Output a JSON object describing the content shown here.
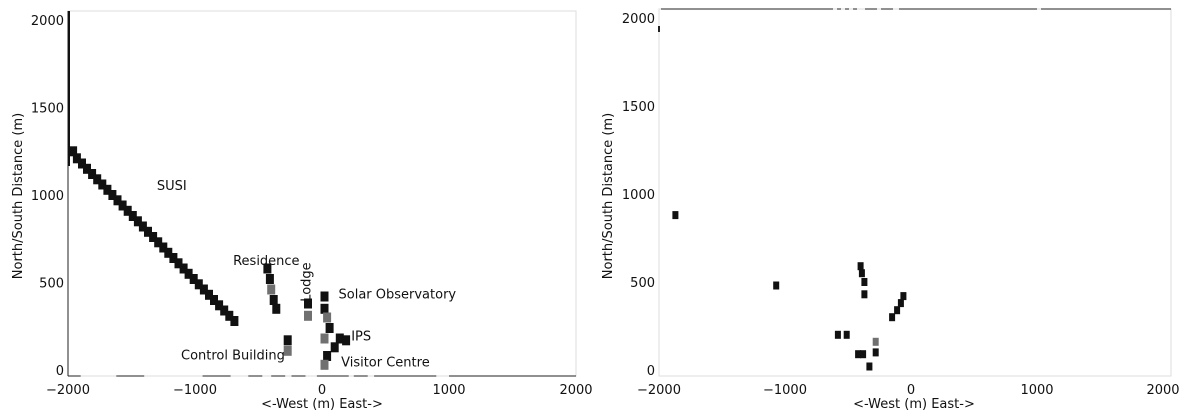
{
  "chart_data": [
    {
      "type": "heatmap",
      "panel": "left",
      "title": "",
      "xlabel": "<-West (m) East->",
      "ylabel": "North/South Distance (m)",
      "xlim": [
        -2000,
        2000
      ],
      "ylim": [
        0,
        2050
      ],
      "xticks": [
        -2000,
        -1000,
        0,
        1000,
        2000
      ],
      "yticks": [
        0,
        500,
        1000,
        1500,
        2000
      ],
      "grid": false,
      "annotations": [
        {
          "text": "SUSI",
          "x": -1300,
          "y": 1030
        },
        {
          "text": "Residence",
          "x": -700,
          "y": 600
        },
        {
          "text": "Lodge",
          "x": -90,
          "y": 390,
          "rotation": -90
        },
        {
          "text": "Solar Observatory",
          "x": 130,
          "y": 410
        },
        {
          "text": "IPS",
          "x": 230,
          "y": 170
        },
        {
          "text": "Control Building",
          "x": -1110,
          "y": 60
        },
        {
          "text": "Visitor Centre",
          "x": 150,
          "y": 20
        }
      ],
      "cells": [
        {
          "x": -1960,
          "y": 1250,
          "v": 1
        },
        {
          "x": -1930,
          "y": 1210,
          "v": 1
        },
        {
          "x": -1890,
          "y": 1180,
          "v": 1
        },
        {
          "x": -1850,
          "y": 1150,
          "v": 1
        },
        {
          "x": -1810,
          "y": 1120,
          "v": 1
        },
        {
          "x": -1770,
          "y": 1090,
          "v": 1
        },
        {
          "x": -1730,
          "y": 1060,
          "v": 1
        },
        {
          "x": -1690,
          "y": 1030,
          "v": 1
        },
        {
          "x": -1650,
          "y": 1000,
          "v": 1
        },
        {
          "x": -1610,
          "y": 970,
          "v": 1
        },
        {
          "x": -1570,
          "y": 940,
          "v": 1
        },
        {
          "x": -1530,
          "y": 910,
          "v": 1
        },
        {
          "x": -1490,
          "y": 880,
          "v": 1
        },
        {
          "x": -1450,
          "y": 850,
          "v": 1
        },
        {
          "x": -1410,
          "y": 820,
          "v": 1
        },
        {
          "x": -1370,
          "y": 790,
          "v": 1
        },
        {
          "x": -1330,
          "y": 760,
          "v": 1
        },
        {
          "x": -1290,
          "y": 730,
          "v": 1
        },
        {
          "x": -1250,
          "y": 700,
          "v": 1
        },
        {
          "x": -1210,
          "y": 670,
          "v": 1
        },
        {
          "x": -1170,
          "y": 640,
          "v": 1
        },
        {
          "x": -1130,
          "y": 610,
          "v": 1
        },
        {
          "x": -1090,
          "y": 580,
          "v": 1
        },
        {
          "x": -1050,
          "y": 550,
          "v": 1
        },
        {
          "x": -1010,
          "y": 520,
          "v": 1
        },
        {
          "x": -970,
          "y": 490,
          "v": 1
        },
        {
          "x": -930,
          "y": 460,
          "v": 1
        },
        {
          "x": -890,
          "y": 430,
          "v": 1
        },
        {
          "x": -850,
          "y": 400,
          "v": 1
        },
        {
          "x": -810,
          "y": 370,
          "v": 1
        },
        {
          "x": -770,
          "y": 340,
          "v": 1
        },
        {
          "x": -730,
          "y": 310,
          "v": 1
        },
        {
          "x": -690,
          "y": 280,
          "v": 1
        },
        {
          "x": -430,
          "y": 580,
          "v": 1
        },
        {
          "x": -410,
          "y": 520,
          "v": 1
        },
        {
          "x": -400,
          "y": 460,
          "v": 0.6
        },
        {
          "x": -380,
          "y": 400,
          "v": 1
        },
        {
          "x": -360,
          "y": 350,
          "v": 1
        },
        {
          "x": -270,
          "y": 170,
          "v": 1
        },
        {
          "x": -270,
          "y": 110,
          "v": 0.6
        },
        {
          "x": -110,
          "y": 380,
          "v": 1
        },
        {
          "x": -110,
          "y": 310,
          "v": 0.6
        },
        {
          "x": 20,
          "y": 420,
          "v": 1
        },
        {
          "x": 20,
          "y": 350,
          "v": 1
        },
        {
          "x": 40,
          "y": 300,
          "v": 0.6
        },
        {
          "x": 60,
          "y": 240,
          "v": 1
        },
        {
          "x": 20,
          "y": 180,
          "v": 0.6
        },
        {
          "x": 140,
          "y": 180,
          "v": 1
        },
        {
          "x": 190,
          "y": 170,
          "v": 1
        },
        {
          "x": 100,
          "y": 130,
          "v": 1
        },
        {
          "x": 40,
          "y": 80,
          "v": 1
        },
        {
          "x": 20,
          "y": 30,
          "v": 0.6
        }
      ]
    },
    {
      "type": "heatmap",
      "panel": "right",
      "title": "",
      "xlabel": "<-West (m) East->",
      "ylabel": "North/South Distance (m)",
      "xlim": [
        -2000,
        2000
      ],
      "ylim": [
        0,
        2050
      ],
      "xticks": [
        -2000,
        -1000,
        0,
        1000,
        2000
      ],
      "yticks": [
        0,
        500,
        1000,
        1500,
        2000
      ],
      "grid": false,
      "cells": [
        {
          "x": -1870,
          "y": 880,
          "v": 1
        },
        {
          "x": -1070,
          "y": 480,
          "v": 1
        },
        {
          "x": -580,
          "y": 200,
          "v": 1
        },
        {
          "x": -510,
          "y": 200,
          "v": 1
        },
        {
          "x": -400,
          "y": 590,
          "v": 1
        },
        {
          "x": -390,
          "y": 550,
          "v": 1
        },
        {
          "x": -370,
          "y": 500,
          "v": 1
        },
        {
          "x": -370,
          "y": 430,
          "v": 1
        },
        {
          "x": -420,
          "y": 90,
          "v": 1
        },
        {
          "x": -380,
          "y": 90,
          "v": 1
        },
        {
          "x": -330,
          "y": 20,
          "v": 1
        },
        {
          "x": -280,
          "y": 160,
          "v": 0.6
        },
        {
          "x": -280,
          "y": 100,
          "v": 1
        },
        {
          "x": -150,
          "y": 300,
          "v": 1
        },
        {
          "x": -110,
          "y": 340,
          "v": 1
        },
        {
          "x": -80,
          "y": 380,
          "v": 1
        },
        {
          "x": -60,
          "y": 420,
          "v": 1
        }
      ]
    }
  ]
}
